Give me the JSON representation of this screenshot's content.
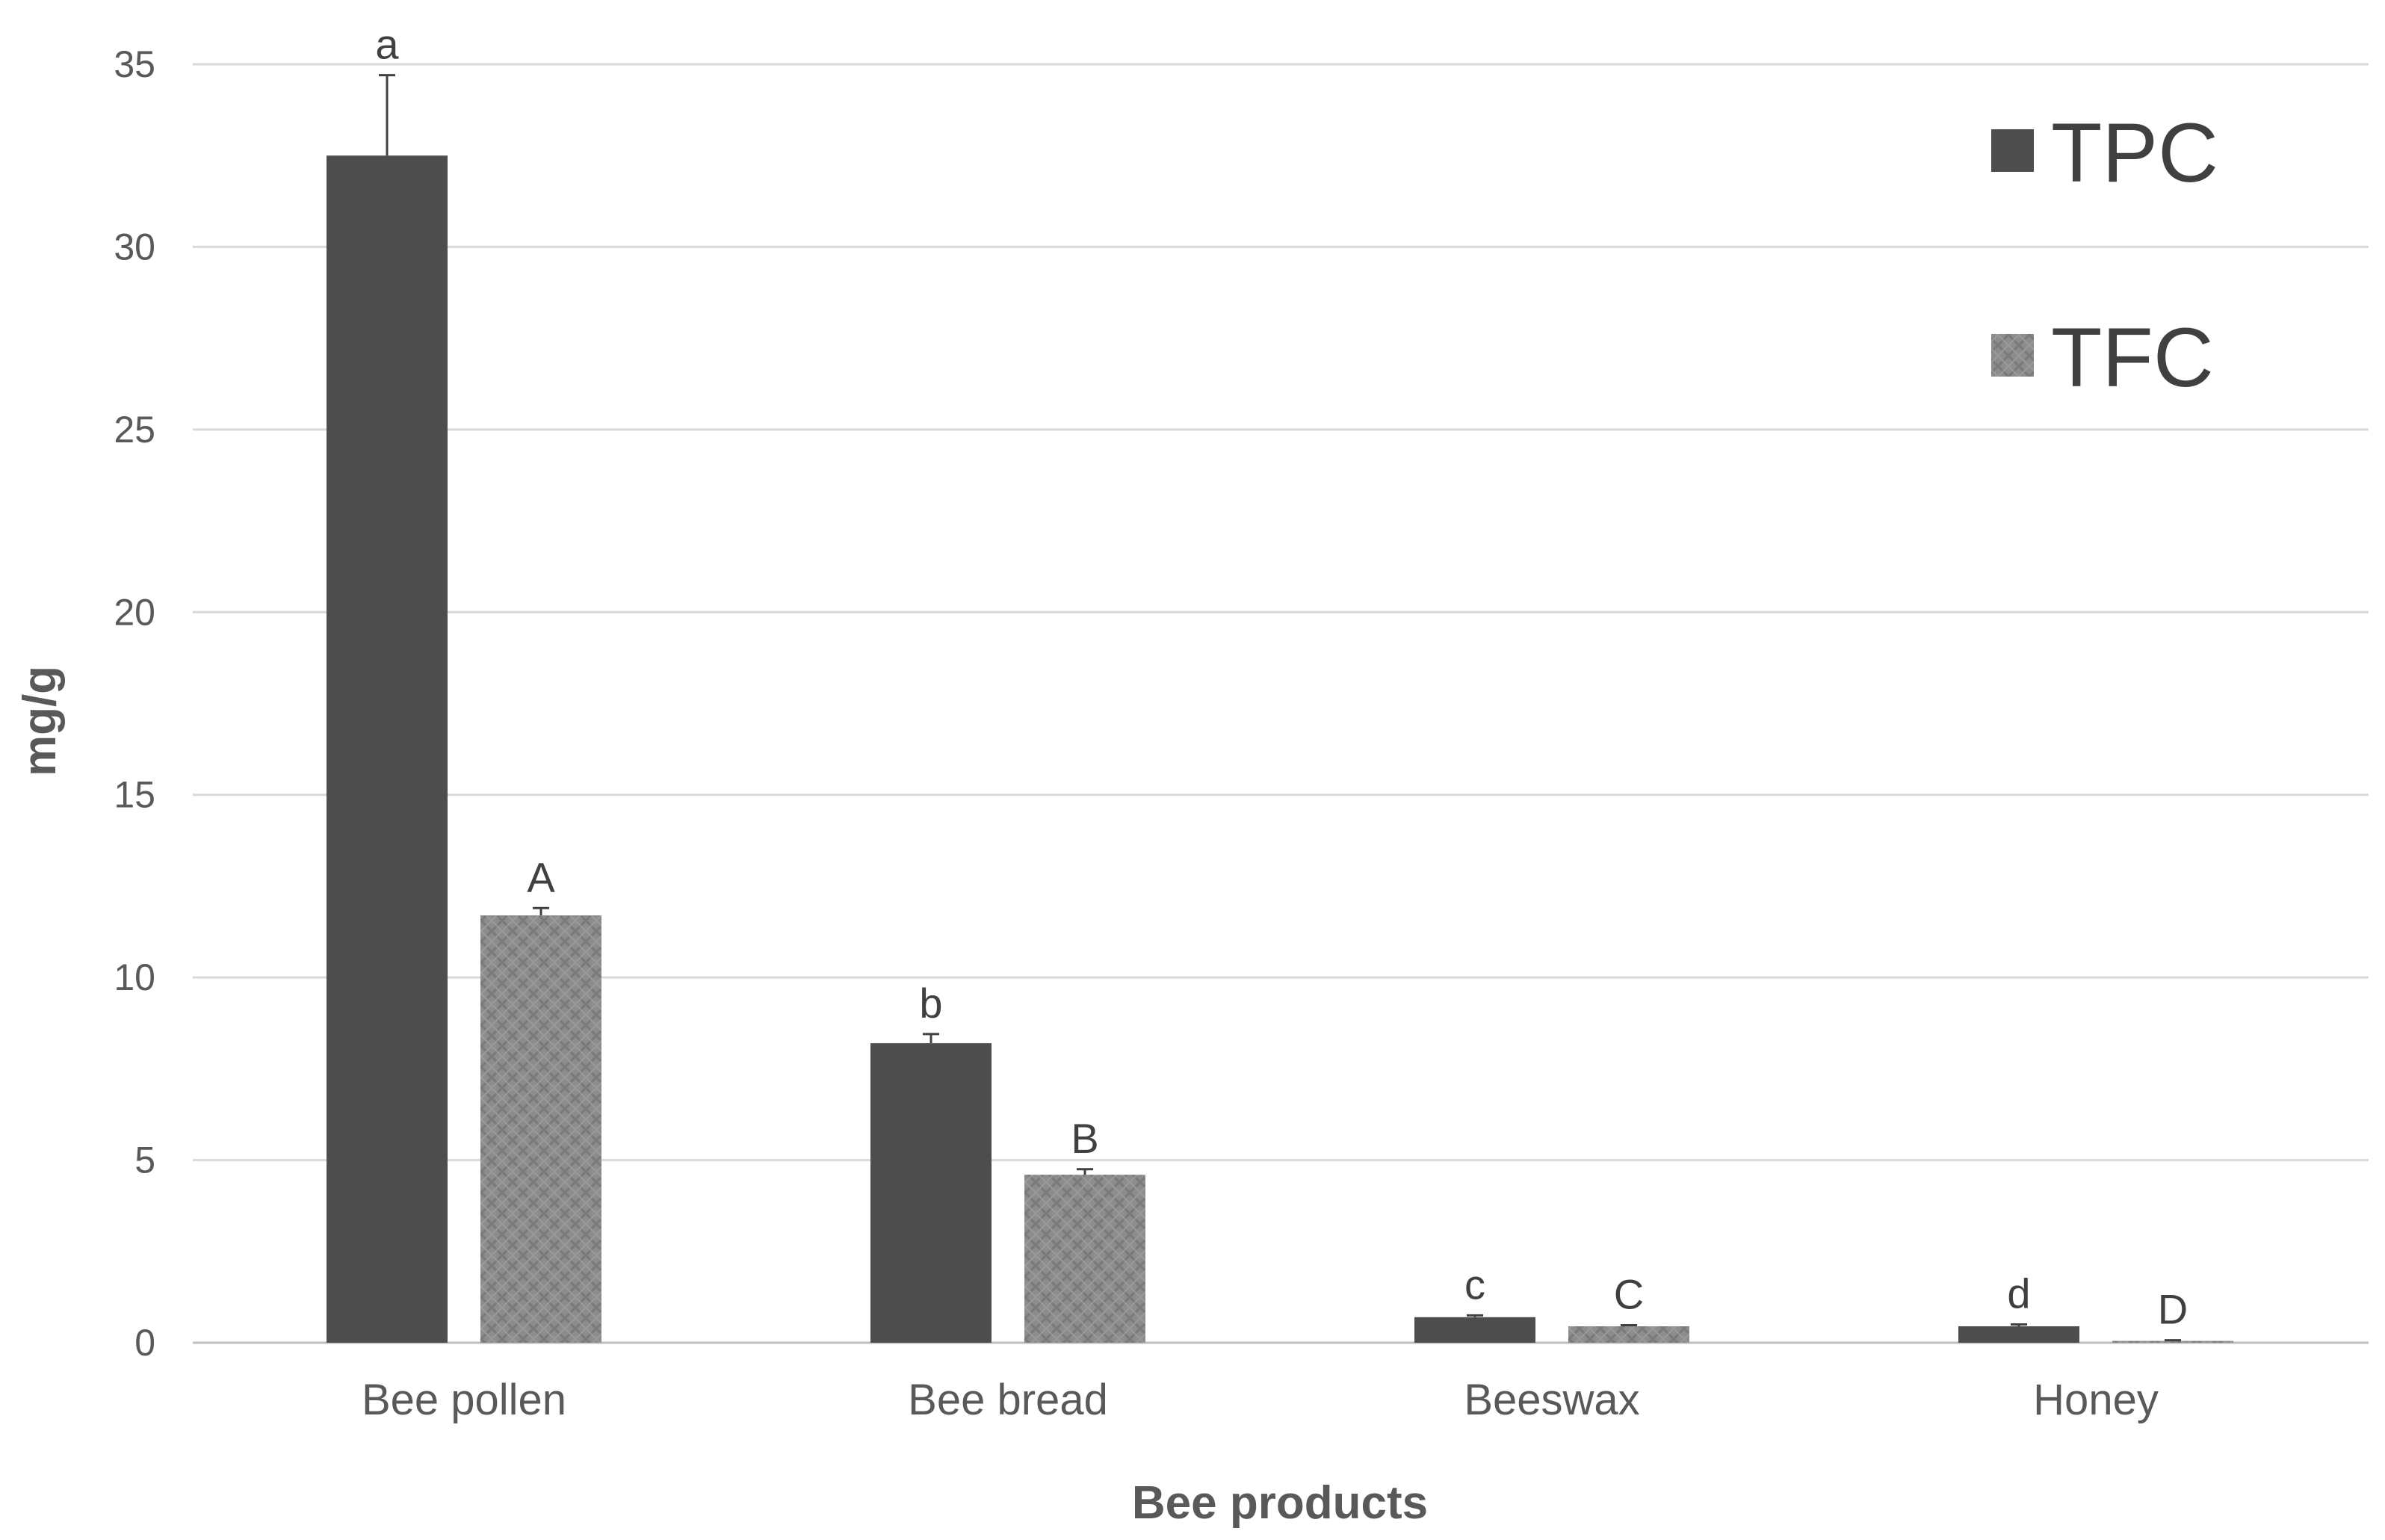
{
  "chart_data": {
    "type": "bar",
    "title": "",
    "xlabel": "Bee products",
    "ylabel": "mg/g",
    "ylim": [
      0,
      35
    ],
    "yticks": [
      0,
      5,
      10,
      15,
      20,
      25,
      30,
      35
    ],
    "grid": true,
    "legend_position": "top-right",
    "categories": [
      "Bee pollen",
      "Bee bread",
      "Beeswax",
      "Honey"
    ],
    "series": [
      {
        "name": "TPC",
        "color": "#4d4d4d",
        "values": [
          32.5,
          8.2,
          0.7,
          0.45
        ],
        "errors": [
          2.2,
          0.25,
          0.05,
          0.05
        ],
        "significance_labels": [
          "a",
          "b",
          "c",
          "d"
        ]
      },
      {
        "name": "TFC",
        "color": "#8c8c8c",
        "pattern": "crosshatch",
        "values": [
          11.7,
          4.6,
          0.45,
          0.05
        ],
        "errors": [
          0.2,
          0.15,
          0.03,
          0.02
        ],
        "significance_labels": [
          "A",
          "B",
          "C",
          "D"
        ]
      }
    ]
  }
}
